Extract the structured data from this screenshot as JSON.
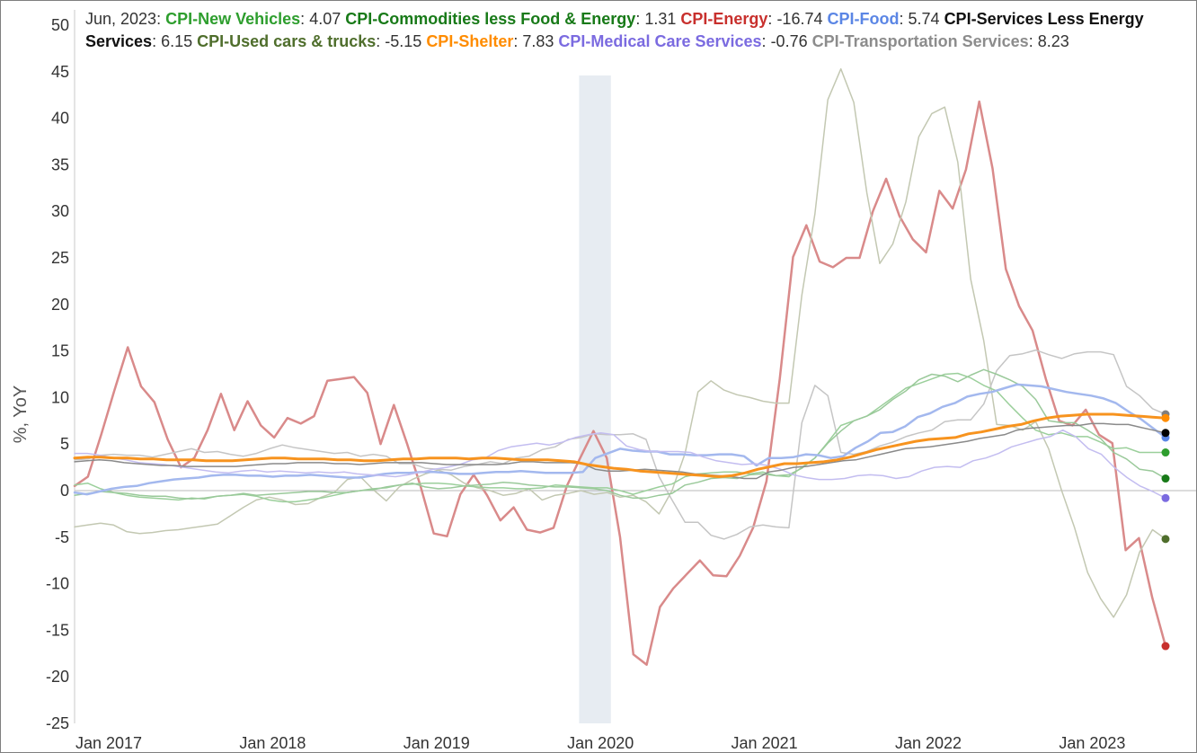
{
  "legend": {
    "date": "Jun, 2023",
    "items": [
      {
        "name": "CPI-New Vehicles",
        "value": "4.07",
        "color": "#2e9e2e"
      },
      {
        "name": "CPI-Commodities less Food & Energy",
        "value": "1.31",
        "color": "#187a18"
      },
      {
        "name": "CPI-Energy",
        "value": "-16.74",
        "color": "#c8302d"
      },
      {
        "name": "CPI-Food",
        "value": "5.74",
        "color": "#5b86e5"
      },
      {
        "name": "CPI-Services Less Energy Services",
        "value": "6.15",
        "color": "#111111"
      },
      {
        "name": "CPI-Used cars & trucks",
        "value": "-5.15",
        "color": "#4f6e2c"
      },
      {
        "name": "CPI-Shelter",
        "value": "7.83",
        "color": "#ff8c00"
      },
      {
        "name": "CPI-Medical Care Services",
        "value": "-0.76",
        "color": "#7b6be0"
      },
      {
        "name": "CPI-Transportation Services",
        "value": "8.23",
        "color": "#8c8c8c"
      }
    ]
  },
  "chart_data": {
    "type": "line",
    "ylabel": "%, YoY",
    "xlabel": "",
    "ylim": [
      -25,
      50
    ],
    "yticks": [
      50,
      45,
      40,
      35,
      30,
      25,
      20,
      15,
      10,
      5,
      0,
      -5,
      -10,
      -15,
      -20,
      -25
    ],
    "xticks": [
      "Jan 2017",
      "Jan 2018",
      "Jan 2019",
      "Jan 2020",
      "Jan 2021",
      "Jan 2022",
      "Jan 2023"
    ],
    "x_range": [
      "Jan 2017",
      "Jun 2023"
    ],
    "recession_shading": [
      "Feb 2020",
      "Apr 2020"
    ],
    "series": [
      {
        "name": "CPI-Energy",
        "color": "#d98a8a",
        "end_color": "#c8302d",
        "width": 2.5,
        "values": [
          0.5,
          1.5,
          6,
          10.8,
          15.4,
          11.2,
          9.5,
          5.5,
          2.5,
          3.5,
          6.5,
          10.4,
          6.5,
          9.6,
          7,
          5.7,
          7.8,
          7.2,
          8,
          11.8,
          12,
          12.2,
          10.5,
          5,
          9.2,
          5,
          0.5,
          -4.6,
          -4.9,
          -0.4,
          1.7,
          -0.5,
          -3.2,
          -1.8,
          -4.2,
          -4.5,
          -4,
          0.5,
          3.5,
          6.4,
          3.5,
          -5,
          -17.6,
          -18.7,
          -12.5,
          -10.5,
          -9,
          -7.5,
          -9.1,
          -9.2,
          -7,
          -4,
          1,
          12,
          25.1,
          28.5,
          24.6,
          24,
          25,
          25,
          30,
          33.5,
          29.5,
          27,
          25.6,
          32.2,
          30.3,
          34.5,
          41.8,
          34.6,
          23.8,
          19.8,
          17.2,
          12,
          7.5,
          7,
          8.7,
          6,
          5.1,
          -6.4,
          -5.1,
          -11.5,
          -16.7
        ]
      },
      {
        "name": "CPI-Used cars & trucks",
        "color": "#c3c8b2",
        "end_color": "#4f6e2c",
        "width": 1.5,
        "values": [
          -3.9,
          -3.7,
          -3.5,
          -3.7,
          -4.4,
          -4.6,
          -4.5,
          -4.3,
          -4.2,
          -4,
          -3.8,
          -3.6,
          -2.7,
          -1.8,
          -1,
          -0.7,
          -1,
          -1.5,
          -1.4,
          -0.7,
          -0.2,
          1.2,
          1.5,
          0.1,
          -1.1,
          0.4,
          1.2,
          1.8,
          2.2,
          1.7,
          0.8,
          0.3,
          0,
          -0.5,
          -0.3,
          0.2,
          -1,
          -0.5,
          -0.3,
          0,
          -0.4,
          -0.2,
          -0.7,
          -0.5,
          -1.2,
          -2.5,
          0,
          4,
          10.6,
          11.8,
          10.8,
          10.3,
          10,
          9.6,
          9.4,
          9.4,
          21,
          29.7,
          42,
          45.3,
          41.7,
          32,
          24.4,
          26.5,
          31,
          38,
          40.5,
          41.2,
          35.3,
          22.7,
          16.1,
          7.1,
          7,
          6.5,
          7.4,
          4.5,
          0,
          -4,
          -8.8,
          -11.6,
          -13.6,
          -11.2,
          -6.6,
          -4.2,
          -5.2
        ]
      },
      {
        "name": "CPI-Transportation Services",
        "color": "#c5c5c5",
        "end_color": "#7f7f7f",
        "width": 1.5,
        "values": [
          3.3,
          3.4,
          3.8,
          3.9,
          3.8,
          3.8,
          3.6,
          3.9,
          4.2,
          4.5,
          4.1,
          4.2,
          3.9,
          3.7,
          4,
          4.5,
          4.9,
          4.6,
          4.4,
          4.2,
          4,
          4.1,
          3.7,
          3.9,
          3.7,
          2.9,
          2.9,
          2.4,
          2.3,
          2.2,
          2.6,
          2.8,
          3.1,
          2.9,
          3.5,
          3.7,
          4.4,
          4.7,
          5.5,
          5.7,
          6.1,
          6,
          6,
          6.1,
          5.5,
          1.5,
          -1,
          -3.4,
          -3.4,
          -4.8,
          -5.2,
          -4.7,
          -3.9,
          -3.7,
          -3.9,
          -4,
          7.3,
          11.3,
          10.2,
          4.1,
          3.9,
          4.2,
          4.8,
          5.2,
          5.8,
          6.2,
          6.5,
          7.4,
          7.6,
          7.6,
          9.3,
          12.9,
          14.5,
          14.7,
          15.1,
          14.6,
          14.2,
          14.7,
          14.9,
          14.9,
          14.6,
          11.2,
          10.2,
          8.8,
          8.2
        ]
      },
      {
        "name": "CPI-New Vehicles",
        "color": "#9bcf9b",
        "end_color": "#2e9e2e",
        "width": 1.5,
        "values": [
          0.6,
          0.8,
          0.2,
          -0.2,
          -0.5,
          -0.7,
          -0.8,
          -0.9,
          -1,
          -0.8,
          -0.9,
          -0.6,
          -0.5,
          -0.4,
          -0.6,
          -1,
          -1.2,
          -1.2,
          -1,
          -0.8,
          -0.5,
          -0.2,
          0,
          0.2,
          0.3,
          0.6,
          0.7,
          0.8,
          0.8,
          0.7,
          0.5,
          0.4,
          0.3,
          0.3,
          0.2,
          0.2,
          0.3,
          0.6,
          0.5,
          0.4,
          0.3,
          0.3,
          0,
          -0.4,
          0,
          0.4,
          0.7,
          1.5,
          1.8,
          1.9,
          2,
          2,
          1.8,
          2,
          1.6,
          1.5,
          2.5,
          3.5,
          5.2,
          7,
          7.5,
          8,
          9,
          10,
          11,
          11.5,
          12,
          12.5,
          12.6,
          12.1,
          11.3,
          10.7,
          9.2,
          7.8,
          6.5,
          6,
          6.2,
          5.8,
          5.8,
          5.2,
          4.5,
          4.6,
          4.1,
          4.1,
          4.1
        ]
      },
      {
        "name": "CPI-Commodities less Food & Energy",
        "color": "#9ac99a",
        "end_color": "#187a18",
        "width": 1.5,
        "values": [
          -0.5,
          -0.3,
          -0.1,
          -0.2,
          -0.3,
          -0.5,
          -0.6,
          -0.6,
          -0.8,
          -0.9,
          -0.8,
          -0.6,
          -0.5,
          -0.3,
          -0.5,
          -0.4,
          -0.3,
          -0.2,
          -0.1,
          -0.1,
          -0.2,
          -0.2,
          0,
          0.1,
          0.4,
          0.6,
          0.8,
          0.4,
          0.2,
          0.3,
          0.5,
          0.6,
          0.7,
          0.9,
          0.8,
          0.6,
          0.5,
          0.4,
          0.4,
          0.3,
          0.2,
          0,
          -0.5,
          -0.8,
          -0.8,
          -0.5,
          -0.3,
          0.6,
          0.9,
          1.3,
          1.4,
          1.3,
          1.7,
          1.8,
          1.6,
          1.7,
          2.4,
          3.5,
          5.1,
          6.4,
          7.5,
          8,
          8.7,
          9.8,
          10.7,
          11.9,
          12.5,
          12.3,
          11.7,
          12.4,
          13,
          12.5,
          11.9,
          11.2,
          9.8,
          7.5,
          7.3,
          7.3,
          6.5,
          5.6,
          4.1,
          3.4,
          2.3,
          2.1,
          1.3
        ]
      },
      {
        "name": "CPI-Food",
        "color": "#a3b8ee",
        "end_color": "#5b86e5",
        "width": 2.5,
        "values": [
          -0.2,
          -0.4,
          -0.1,
          0.2,
          0.4,
          0.5,
          0.8,
          1,
          1.2,
          1.3,
          1.4,
          1.6,
          1.7,
          1.7,
          1.6,
          1.6,
          1.5,
          1.6,
          1.6,
          1.7,
          1.6,
          1.5,
          1.4,
          1.4,
          1.6,
          1.8,
          1.9,
          1.9,
          2,
          2,
          1.9,
          1.8,
          1.8,
          1.9,
          2,
          2,
          2.1,
          2,
          1.9,
          1.9,
          1.9,
          2,
          3.5,
          4,
          4.5,
          4.3,
          4.2,
          4.2,
          3.9,
          3.9,
          3.8,
          3.8,
          3.9,
          3.9,
          3.7,
          2.7,
          3.5,
          3.5,
          3.6,
          3.9,
          3.8,
          3.5,
          3.7,
          4.6,
          5.3,
          6.2,
          6.3,
          6.9,
          7.9,
          8.3,
          9,
          9.4,
          10.1,
          10.4,
          10.6,
          11,
          11.4,
          11.3,
          11.2,
          10.9,
          10.6,
          10.4,
          10.2,
          9.9,
          9.4,
          8.5,
          7.7,
          6.7,
          5.7
        ]
      },
      {
        "name": "CPI-Medical Care Services",
        "color": "#c3bdf0",
        "end_color": "#7b6be0",
        "width": 1.5,
        "values": [
          4,
          4,
          3.8,
          3.5,
          3.3,
          3,
          2.9,
          2.8,
          2.6,
          2.4,
          2.2,
          2,
          1.9,
          2.1,
          2.2,
          2,
          2.1,
          2,
          1.9,
          2,
          1.9,
          2,
          1.8,
          1.7,
          1.6,
          1.5,
          1.7,
          2,
          2.3,
          2.5,
          2.8,
          3.3,
          3.5,
          4.3,
          4.7,
          4.9,
          5.1,
          4.9,
          5.2,
          5.7,
          6,
          6.2,
          6,
          4.8,
          4.4,
          4.2,
          4.2,
          4.2,
          4.1,
          3.6,
          3.2,
          3,
          2.8,
          2.9,
          2.7,
          2.3,
          1.7,
          1.4,
          1.2,
          1.2,
          1.3,
          1.6,
          1.7,
          1.6,
          1.3,
          1.5,
          2.1,
          2.5,
          2.6,
          2.5,
          3.2,
          3.5,
          4,
          4.7,
          5.1,
          5.5,
          5.8,
          6.5,
          5.8,
          4.5,
          3.9,
          2.5,
          1.4,
          0.5,
          -0.1,
          -0.8
        ]
      },
      {
        "name": "CPI-Services Less Energy Services",
        "color": "#8a8a8a",
        "end_color": "#000000",
        "width": 1.5,
        "values": [
          3.1,
          3.2,
          3.3,
          3.2,
          3,
          2.9,
          2.8,
          2.7,
          2.7,
          2.6,
          2.6,
          2.6,
          2.6,
          2.6,
          2.7,
          2.8,
          2.9,
          2.9,
          3,
          3,
          3,
          2.9,
          2.9,
          2.8,
          2.9,
          3,
          3,
          3,
          3,
          2.9,
          2.8,
          2.8,
          2.8,
          2.8,
          2.8,
          2.9,
          3.1,
          3.1,
          3,
          3,
          3,
          2.9,
          2.3,
          2.1,
          2.1,
          2.2,
          2.3,
          2.2,
          2.1,
          2,
          1.8,
          1.7,
          1.6,
          1.5,
          1.3,
          1.3,
          2,
          2.2,
          2.5,
          2.6,
          2.8,
          3,
          3.2,
          3.3,
          3.6,
          3.9,
          4.2,
          4.5,
          4.6,
          4.7,
          4.9,
          5.1,
          5.3,
          5.6,
          5.8,
          6,
          6.5,
          6.7,
          6.8,
          6.9,
          7,
          7,
          7.2,
          7.2,
          7.1,
          7.1,
          6.8,
          6.5,
          6.2
        ]
      },
      {
        "name": "CPI-Shelter",
        "color": "#f7931e",
        "end_color": "#ff8c00",
        "width": 3,
        "values": [
          3.5,
          3.6,
          3.6,
          3.5,
          3.5,
          3.4,
          3.4,
          3.3,
          3.3,
          3.3,
          3.2,
          3.2,
          3.2,
          3.3,
          3.4,
          3.5,
          3.5,
          3.4,
          3.4,
          3.4,
          3.3,
          3.3,
          3.2,
          3.2,
          3.3,
          3.4,
          3.4,
          3.5,
          3.5,
          3.5,
          3.4,
          3.5,
          3.5,
          3.4,
          3.3,
          3.3,
          3.3,
          3.2,
          3.1,
          2.8,
          2.6,
          2.4,
          2.3,
          2.1,
          2,
          1.9,
          1.8,
          1.7,
          1.6,
          1.5,
          1.6,
          1.9,
          2.3,
          2.6,
          2.9,
          2.9,
          3,
          3.1,
          3.3,
          3.6,
          4,
          4.4,
          4.7,
          5,
          5.3,
          5.5,
          5.6,
          5.7,
          6.1,
          6.3,
          6.6,
          6.9,
          7.1,
          7.5,
          7.8,
          8,
          8.1,
          8.2,
          8.2,
          8.2,
          8.1,
          8,
          7.9,
          7.8
        ]
      }
    ]
  }
}
